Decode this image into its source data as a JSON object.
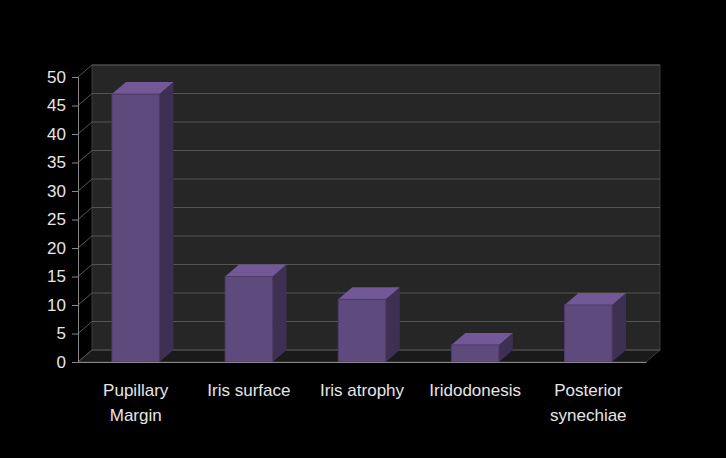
{
  "chart_data": {
    "type": "bar",
    "categories": [
      "Pupillary Margin",
      "Iris surface",
      "Iris atrophy",
      "Iridodonesis",
      "Posterior synechiae"
    ],
    "values": [
      47,
      15,
      11,
      3,
      10
    ],
    "color": "#5f4a7e",
    "ylim": [
      0,
      50
    ],
    "yticks": [
      0,
      5,
      10,
      15,
      20,
      25,
      30,
      35,
      40,
      45,
      50
    ],
    "grid": true
  }
}
